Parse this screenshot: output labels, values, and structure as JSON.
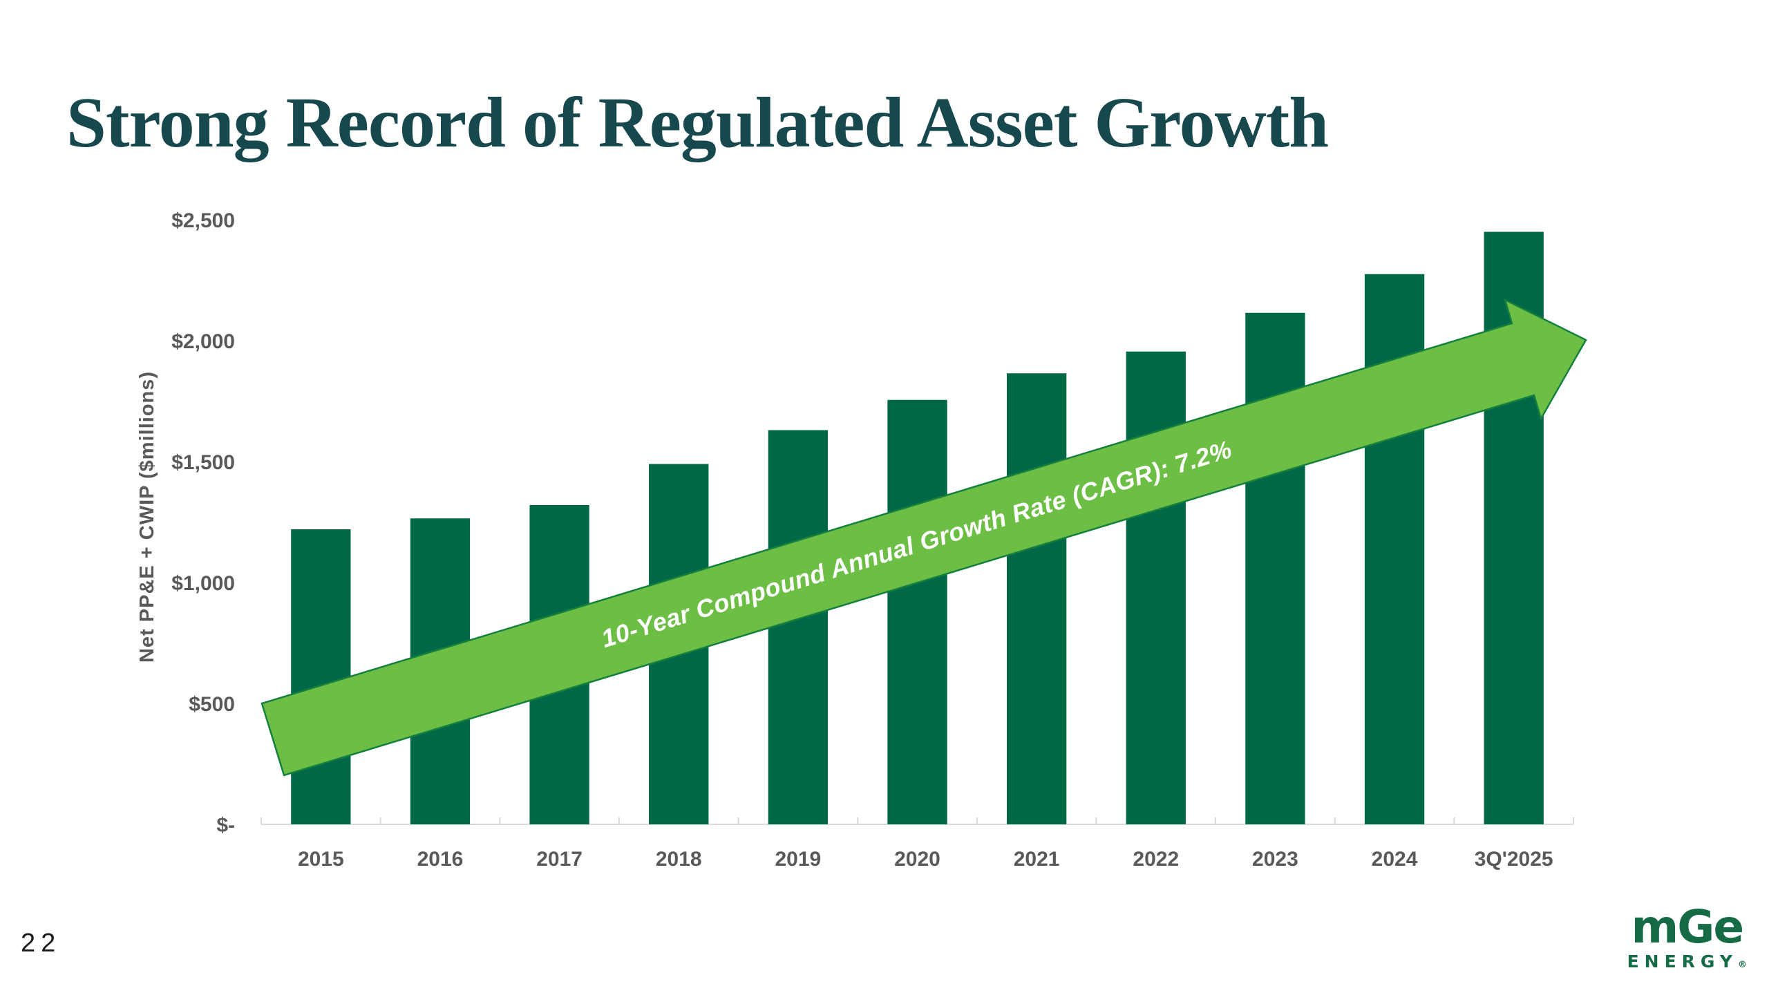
{
  "slide": {
    "title": "Strong Record of Regulated Asset Growth",
    "page_number": "22",
    "background_color": "#FFFFFF",
    "title_color": "#17484D"
  },
  "logo": {
    "brand": "mGe",
    "sub": "ENERGY",
    "registered": "®",
    "color": "#156B45"
  },
  "chart_data": {
    "type": "bar",
    "title": "",
    "xlabel": "",
    "ylabel": "Net PP&E + CWIP ($millions)",
    "ylim": [
      0,
      2500
    ],
    "grid": false,
    "legend": "none",
    "categories": [
      "2015",
      "2016",
      "2017",
      "2018",
      "2019",
      "2020",
      "2021",
      "2022",
      "2023",
      "2024",
      "3Q'2025"
    ],
    "values": [
      1220,
      1265,
      1320,
      1490,
      1630,
      1755,
      1865,
      1955,
      2115,
      2275,
      2450
    ],
    "ytick_values": [
      0,
      500,
      1000,
      1500,
      2000,
      2500
    ],
    "ytick_labels": [
      "$-",
      "$500",
      "$1,000",
      "$1,500",
      "$2,000",
      "$2,500"
    ],
    "bar_color": "#006847",
    "axis_color": "#D9D9D9",
    "tick_label_color": "#595959",
    "annotation": {
      "text": "10-Year Compound Annual Growth Rate (CAGR): 7.2%",
      "shape": "up-right-arrow",
      "arrow_fill": "#6CBE45",
      "arrow_stroke": "#15803E",
      "text_color": "#FFFFFF"
    }
  }
}
